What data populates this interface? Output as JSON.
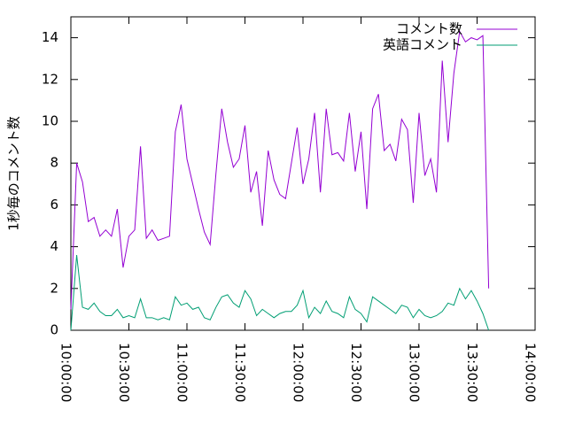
{
  "chart_data": {
    "type": "line",
    "ylabel": "1秒毎のコメント数",
    "x": [
      "10:00:00",
      "10:03:00",
      "10:06:00",
      "10:09:00",
      "10:12:00",
      "10:15:00",
      "10:18:00",
      "10:21:00",
      "10:24:00",
      "10:27:00",
      "10:30:00",
      "10:33:00",
      "10:36:00",
      "10:39:00",
      "10:42:00",
      "10:45:00",
      "10:48:00",
      "10:51:00",
      "10:54:00",
      "10:57:00",
      "11:00:00",
      "11:03:00",
      "11:06:00",
      "11:09:00",
      "11:12:00",
      "11:15:00",
      "11:18:00",
      "11:21:00",
      "11:24:00",
      "11:27:00",
      "11:30:00",
      "11:33:00",
      "11:36:00",
      "11:39:00",
      "11:42:00",
      "11:45:00",
      "11:48:00",
      "11:51:00",
      "11:54:00",
      "11:57:00",
      "12:00:00",
      "12:03:00",
      "12:06:00",
      "12:09:00",
      "12:12:00",
      "12:15:00",
      "12:18:00",
      "12:21:00",
      "12:24:00",
      "12:27:00",
      "12:30:00",
      "12:33:00",
      "12:36:00",
      "12:39:00",
      "12:42:00",
      "12:45:00",
      "12:48:00",
      "12:51:00",
      "12:54:00",
      "12:57:00",
      "13:00:00",
      "13:03:00",
      "13:06:00",
      "13:09:00",
      "13:12:00",
      "13:15:00",
      "13:18:00",
      "13:21:00",
      "13:24:00",
      "13:27:00",
      "13:30:00",
      "13:33:00",
      "13:36:00"
    ],
    "series": [
      {
        "name": "コメント数",
        "color": "#9400d3",
        "values": [
          1,
          8,
          7.1,
          5.2,
          5.4,
          4.5,
          4.8,
          4.5,
          5.8,
          3,
          4.5,
          4.8,
          8.8,
          4.4,
          4.8,
          4.3,
          4.4,
          4.5,
          9.5,
          10.8,
          8.2,
          7,
          5.8,
          4.7,
          4.1,
          7.5,
          10.6,
          9,
          7.8,
          8.2,
          9.8,
          6.6,
          7.6,
          5,
          8.6,
          7.2,
          6.5,
          6.3,
          8,
          9.7,
          7,
          8.2,
          10.4,
          6.6,
          10.6,
          8.4,
          8.5,
          8.1,
          10.4,
          7.6,
          9.5,
          5.8,
          10.6,
          11.3,
          8.6,
          8.9,
          8.1,
          10.1,
          9.6,
          6.1,
          10.4,
          7.4,
          8.2,
          6.6,
          12.9,
          9,
          12.3,
          14.3,
          13.8,
          14,
          13.9,
          14.1,
          2
        ]
      },
      {
        "name": "英語コメント",
        "color": "#009e73",
        "values": [
          0,
          3.6,
          1.1,
          1,
          1.3,
          0.9,
          0.7,
          0.7,
          1,
          0.6,
          0.7,
          0.6,
          1.5,
          0.6,
          0.6,
          0.5,
          0.6,
          0.5,
          1.6,
          1.2,
          1.3,
          1,
          1.1,
          0.6,
          0.5,
          1.1,
          1.6,
          1.7,
          1.3,
          1.1,
          1.9,
          1.5,
          0.7,
          1,
          0.8,
          0.6,
          0.8,
          0.9,
          0.9,
          1.2,
          1.9,
          0.6,
          1.1,
          0.8,
          1.4,
          0.9,
          0.8,
          0.6,
          1.6,
          1,
          0.8,
          0.4,
          1.6,
          1.4,
          1.2,
          1,
          0.8,
          1.2,
          1.1,
          0.6,
          1,
          0.7,
          0.6,
          0.7,
          0.9,
          1.3,
          1.2,
          2,
          1.5,
          1.9,
          1.4,
          0.8,
          0
        ]
      }
    ],
    "xlim": [
      "10:00:00",
      "14:00:00"
    ],
    "xticks": [
      "10:00:00",
      "10:30:00",
      "11:00:00",
      "11:30:00",
      "12:00:00",
      "12:30:00",
      "13:00:00",
      "13:30:00",
      "14:00:00"
    ],
    "ylim": [
      0,
      15
    ],
    "yticks": [
      0,
      2,
      4,
      6,
      8,
      10,
      12,
      14
    ],
    "legend": "top-right"
  }
}
